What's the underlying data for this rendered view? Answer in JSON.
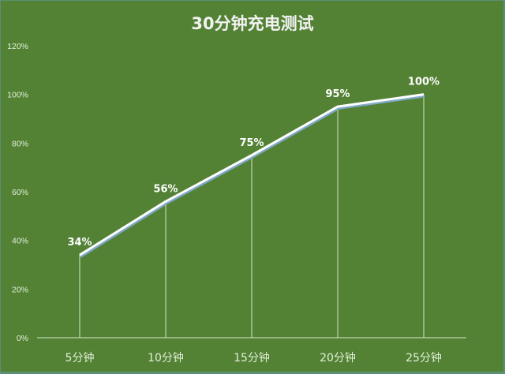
{
  "chart_data": {
    "type": "line",
    "title": "30分钟充电测试",
    "categories": [
      "5分钟",
      "10分钟",
      "15分钟",
      "20分钟",
      "25分钟"
    ],
    "values": [
      34,
      56,
      75,
      95,
      100
    ],
    "data_labels": [
      "34%",
      "56%",
      "75%",
      "95%",
      "100%"
    ],
    "xlabel": "",
    "ylabel": "",
    "ylim": [
      0,
      120
    ],
    "yticks": [
      "0%",
      "20%",
      "40%",
      "60%",
      "80%",
      "100%",
      "120%"
    ],
    "grid": false,
    "drop_lines": true,
    "legend": "none",
    "colors": {
      "background": "#548235",
      "line": "#ffffff",
      "text": "#e2efd9"
    }
  }
}
